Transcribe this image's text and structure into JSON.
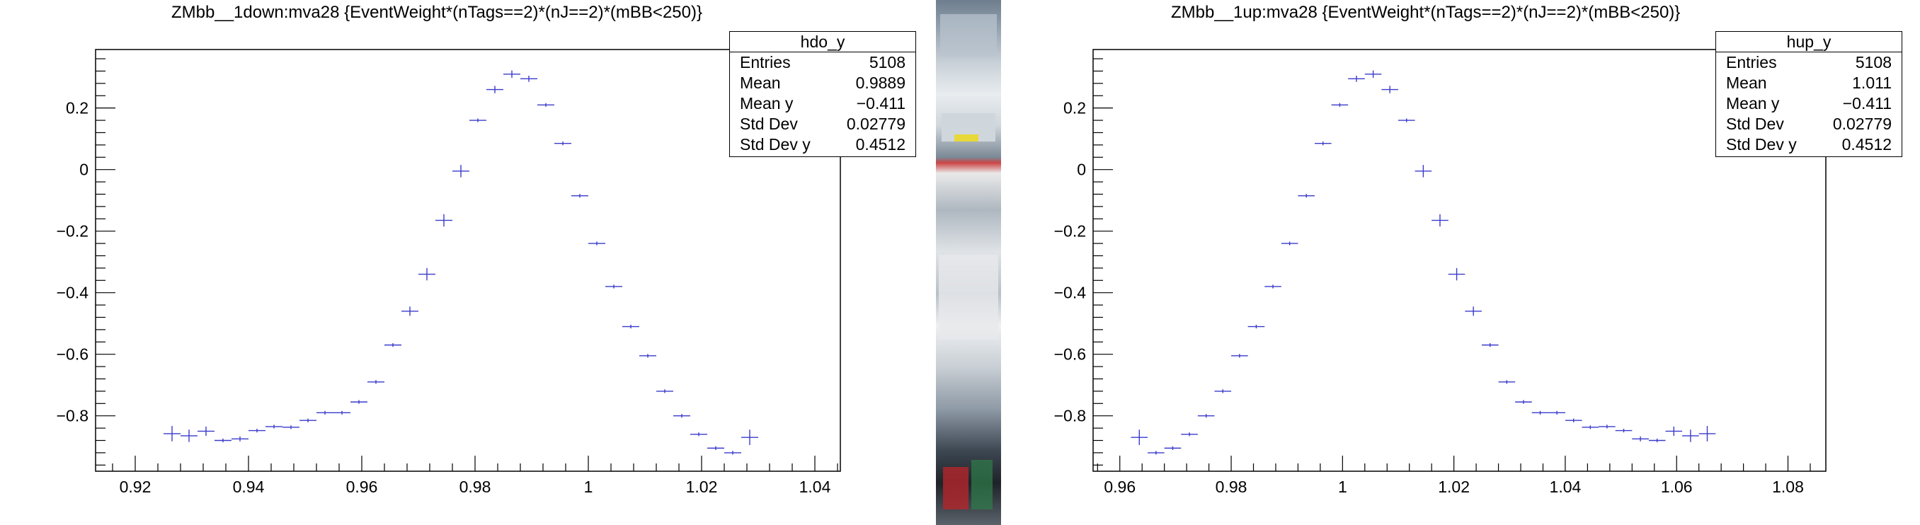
{
  "colors": {
    "marker": "#3a3acc",
    "axis": "#000000",
    "background": "#ffffff"
  },
  "plots": [
    {
      "title": "ZMbb__1down:mva28 {EventWeight*(nTags==2)*(nJ==2)*(mBB<250)}",
      "stats": {
        "name": "hdo_y",
        "rows": [
          {
            "label": "Entries",
            "value": "5108"
          },
          {
            "label": "Mean",
            "value": "0.9889"
          },
          {
            "label": "Mean y",
            "value": "−0.411"
          },
          {
            "label": "Std Dev",
            "value": "0.02779"
          },
          {
            "label": "Std Dev y",
            "value": "0.4512"
          }
        ]
      },
      "xticks": [
        "0.92",
        "0.94",
        "0.96",
        "0.98",
        "1",
        "1.02",
        "1.04"
      ],
      "yticks": [
        "−0.8",
        "−0.6",
        "−0.4",
        "−0.2",
        "0",
        "0.2"
      ]
    },
    {
      "title": "ZMbb__1up:mva28 {EventWeight*(nTags==2)*(nJ==2)*(mBB<250)}",
      "stats": {
        "name": "hup_y",
        "rows": [
          {
            "label": "Entries",
            "value": "5108"
          },
          {
            "label": "Mean",
            "value": "1.011"
          },
          {
            "label": "Mean y",
            "value": "−0.411"
          },
          {
            "label": "Std Dev",
            "value": "0.02779"
          },
          {
            "label": "Std Dev y",
            "value": "0.4512"
          }
        ]
      },
      "xticks": [
        "0.96",
        "0.98",
        "1",
        "1.02",
        "1.04",
        "1.06",
        "1.08"
      ],
      "yticks": [
        "−0.8",
        "−0.6",
        "−0.4",
        "−0.2",
        "0",
        "0.2"
      ]
    }
  ],
  "chart_data": [
    {
      "type": "scatter",
      "title": "ZMbb__1down:mva28 {EventWeight*(nTags==2)*(nJ==2)*(mBB<250)}",
      "xlim": [
        0.913,
        1.0445
      ],
      "ylim": [
        -0.98,
        0.39
      ],
      "x_ticks": [
        0.92,
        0.94,
        0.96,
        0.98,
        1.0,
        1.02,
        1.04
      ],
      "y_ticks": [
        -0.8,
        -0.6,
        -0.4,
        -0.2,
        0,
        0.2
      ],
      "grid": false,
      "legend": "top-right stats box",
      "points": [
        {
          "x": 0.9265,
          "y": -0.858,
          "ey": 0.025
        },
        {
          "x": 0.9295,
          "y": -0.865,
          "ey": 0.02
        },
        {
          "x": 0.9325,
          "y": -0.85,
          "ey": 0.015
        },
        {
          "x": 0.9355,
          "y": -0.88,
          "ey": 0.0
        },
        {
          "x": 0.9385,
          "y": -0.875,
          "ey": 0.008
        },
        {
          "x": 0.9415,
          "y": -0.848,
          "ey": 0.0
        },
        {
          "x": 0.9445,
          "y": -0.835,
          "ey": 0.0
        },
        {
          "x": 0.9475,
          "y": -0.837,
          "ey": 0.0
        },
        {
          "x": 0.9505,
          "y": -0.815,
          "ey": 0.0
        },
        {
          "x": 0.9535,
          "y": -0.79,
          "ey": 0.0
        },
        {
          "x": 0.9565,
          "y": -0.79,
          "ey": 0.0
        },
        {
          "x": 0.9595,
          "y": -0.755,
          "ey": 0.0
        },
        {
          "x": 0.9625,
          "y": -0.69,
          "ey": 0.0
        },
        {
          "x": 0.9655,
          "y": -0.57,
          "ey": 0.0
        },
        {
          "x": 0.9685,
          "y": -0.46,
          "ey": 0.015
        },
        {
          "x": 0.9715,
          "y": -0.34,
          "ey": 0.02
        },
        {
          "x": 0.9745,
          "y": -0.165,
          "ey": 0.02
        },
        {
          "x": 0.9775,
          "y": -0.005,
          "ey": 0.02
        },
        {
          "x": 0.9805,
          "y": 0.16,
          "ey": 0.0
        },
        {
          "x": 0.9835,
          "y": 0.26,
          "ey": 0.012
        },
        {
          "x": 0.9865,
          "y": 0.31,
          "ey": 0.012
        },
        {
          "x": 0.9895,
          "y": 0.295,
          "ey": 0.01
        },
        {
          "x": 0.9925,
          "y": 0.21,
          "ey": 0.0
        },
        {
          "x": 0.9955,
          "y": 0.085,
          "ey": 0.0
        },
        {
          "x": 0.9985,
          "y": -0.085,
          "ey": 0.0
        },
        {
          "x": 1.0015,
          "y": -0.24,
          "ey": 0.0
        },
        {
          "x": 1.0045,
          "y": -0.38,
          "ey": 0.0
        },
        {
          "x": 1.0075,
          "y": -0.51,
          "ey": 0.0
        },
        {
          "x": 1.0105,
          "y": -0.605,
          "ey": 0.0
        },
        {
          "x": 1.0135,
          "y": -0.72,
          "ey": 0.0
        },
        {
          "x": 1.0165,
          "y": -0.8,
          "ey": 0.0
        },
        {
          "x": 1.0195,
          "y": -0.86,
          "ey": 0.0
        },
        {
          "x": 1.0225,
          "y": -0.905,
          "ey": 0.0
        },
        {
          "x": 1.0255,
          "y": -0.92,
          "ey": 0.0
        },
        {
          "x": 1.0285,
          "y": -0.87,
          "ey": 0.025
        }
      ]
    },
    {
      "type": "scatter",
      "title": "ZMbb__1up:mva28 {EventWeight*(nTags==2)*(nJ==2)*(mBB<250)}",
      "xlim": [
        0.9552,
        1.0868
      ],
      "ylim": [
        -0.98,
        0.39
      ],
      "x_ticks": [
        0.96,
        0.98,
        1.0,
        1.02,
        1.04,
        1.06,
        1.08
      ],
      "y_ticks": [
        -0.8,
        -0.6,
        -0.4,
        -0.2,
        0,
        0.2
      ],
      "grid": false,
      "legend": "top-right stats box",
      "points": [
        {
          "x": 0.9635,
          "y": -0.87,
          "ey": 0.025
        },
        {
          "x": 0.9665,
          "y": -0.92,
          "ey": 0.0
        },
        {
          "x": 0.9695,
          "y": -0.905,
          "ey": 0.0
        },
        {
          "x": 0.9725,
          "y": -0.86,
          "ey": 0.0
        },
        {
          "x": 0.9755,
          "y": -0.8,
          "ey": 0.0
        },
        {
          "x": 0.9785,
          "y": -0.72,
          "ey": 0.0
        },
        {
          "x": 0.9815,
          "y": -0.605,
          "ey": 0.0
        },
        {
          "x": 0.9845,
          "y": -0.51,
          "ey": 0.0
        },
        {
          "x": 0.9875,
          "y": -0.38,
          "ey": 0.0
        },
        {
          "x": 0.9905,
          "y": -0.24,
          "ey": 0.0
        },
        {
          "x": 0.9935,
          "y": -0.085,
          "ey": 0.0
        },
        {
          "x": 0.9965,
          "y": 0.085,
          "ey": 0.0
        },
        {
          "x": 0.9995,
          "y": 0.21,
          "ey": 0.0
        },
        {
          "x": 1.0025,
          "y": 0.295,
          "ey": 0.01
        },
        {
          "x": 1.0055,
          "y": 0.31,
          "ey": 0.012
        },
        {
          "x": 1.0085,
          "y": 0.26,
          "ey": 0.012
        },
        {
          "x": 1.0115,
          "y": 0.16,
          "ey": 0.0
        },
        {
          "x": 1.0145,
          "y": -0.005,
          "ey": 0.02
        },
        {
          "x": 1.0175,
          "y": -0.165,
          "ey": 0.02
        },
        {
          "x": 1.0205,
          "y": -0.34,
          "ey": 0.02
        },
        {
          "x": 1.0235,
          "y": -0.46,
          "ey": 0.015
        },
        {
          "x": 1.0265,
          "y": -0.57,
          "ey": 0.0
        },
        {
          "x": 1.0295,
          "y": -0.69,
          "ey": 0.0
        },
        {
          "x": 1.0325,
          "y": -0.755,
          "ey": 0.0
        },
        {
          "x": 1.0355,
          "y": -0.79,
          "ey": 0.0
        },
        {
          "x": 1.0385,
          "y": -0.79,
          "ey": 0.0
        },
        {
          "x": 1.0415,
          "y": -0.815,
          "ey": 0.0
        },
        {
          "x": 1.0445,
          "y": -0.837,
          "ey": 0.0
        },
        {
          "x": 1.0475,
          "y": -0.835,
          "ey": 0.0
        },
        {
          "x": 1.0505,
          "y": -0.848,
          "ey": 0.0
        },
        {
          "x": 1.0535,
          "y": -0.875,
          "ey": 0.008
        },
        {
          "x": 1.0565,
          "y": -0.88,
          "ey": 0.0
        },
        {
          "x": 1.0595,
          "y": -0.85,
          "ey": 0.015
        },
        {
          "x": 1.0625,
          "y": -0.865,
          "ey": 0.02
        },
        {
          "x": 1.0655,
          "y": -0.858,
          "ey": 0.025
        }
      ]
    }
  ]
}
